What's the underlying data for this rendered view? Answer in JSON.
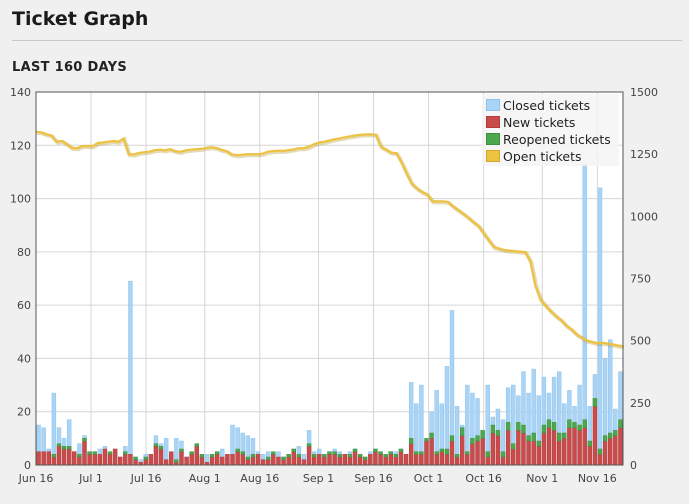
{
  "page": {
    "title": "Ticket Graph",
    "section": "LAST 160 DAYS"
  },
  "legend": [
    {
      "label": "Closed tickets",
      "color": "#a9d4f5",
      "border": "#8fc2ea"
    },
    {
      "label": "New tickets",
      "color": "#cb4b4b",
      "border": "#b13b3b"
    },
    {
      "label": "Reopened tickets",
      "color": "#4da74d",
      "border": "#3d8f3d"
    },
    {
      "label": "Open tickets",
      "color": "#edc240",
      "border": "#d4a82a"
    }
  ],
  "chart_data": {
    "type": "bar",
    "title": "",
    "grid": true,
    "legend_position": "top-right",
    "x_tick_labels": [
      "Jun 16",
      "Jul 1",
      "Jul 16",
      "Aug 1",
      "Aug 16",
      "Sep 1",
      "Sep 16",
      "Oct 1",
      "Oct 16",
      "Nov 1",
      "Nov 16"
    ],
    "y_left": {
      "ylim": [
        0,
        140
      ],
      "ticks": [
        "0",
        "20",
        "40",
        "60",
        "80",
        "100",
        "120",
        "140"
      ]
    },
    "y_right": {
      "ylim": [
        0,
        1500
      ],
      "ticks": [
        "0",
        "250",
        "500",
        "750",
        "1000",
        "1250",
        "1500"
      ]
    },
    "series": [
      {
        "name": "Closed tickets",
        "axis": "left",
        "values": [
          15,
          14,
          6,
          27,
          14,
          10,
          17,
          5,
          8,
          11,
          5,
          4,
          6,
          7,
          4,
          6,
          3,
          7,
          69,
          3,
          2,
          4,
          3,
          11,
          8,
          10,
          4,
          10,
          9,
          3,
          4,
          8,
          3,
          4,
          3,
          5,
          6,
          4,
          15,
          14,
          12,
          11,
          10,
          5,
          4,
          5,
          4,
          5,
          3,
          4,
          6,
          7,
          4,
          13,
          5,
          6,
          4,
          5,
          6,
          5,
          4,
          5,
          6,
          4,
          3,
          5,
          6,
          5,
          4,
          5,
          5,
          6,
          4,
          31,
          23,
          30,
          8,
          20,
          28,
          23,
          37,
          58,
          22,
          15,
          30,
          27,
          25,
          12,
          30,
          18,
          21,
          17,
          29,
          30,
          26,
          35,
          27,
          36,
          26,
          33,
          27,
          33,
          35,
          23,
          28,
          22,
          30,
          113,
          22,
          34,
          104,
          40,
          47,
          21,
          35
        ]
      },
      {
        "name": "New tickets",
        "axis": "left",
        "values": [
          5,
          5,
          5,
          3,
          7,
          6,
          6,
          5,
          3,
          9,
          4,
          4,
          4,
          6,
          4,
          6,
          3,
          4,
          4,
          2,
          1,
          2,
          4,
          7,
          6,
          2,
          5,
          1,
          5,
          3,
          4,
          7,
          3,
          1,
          3,
          4,
          3,
          4,
          4,
          5,
          4,
          2,
          3,
          4,
          2,
          2,
          4,
          3,
          2,
          3,
          5,
          3,
          2,
          7,
          3,
          4,
          3,
          4,
          4,
          3,
          4,
          3,
          5,
          3,
          2,
          4,
          5,
          4,
          3,
          4,
          3,
          5,
          4,
          8,
          4,
          4,
          9,
          10,
          4,
          5,
          4,
          9,
          3,
          11,
          4,
          8,
          9,
          10,
          3,
          12,
          11,
          3,
          13,
          6,
          13,
          12,
          9,
          9,
          7,
          12,
          14,
          13,
          9,
          10,
          14,
          14,
          13,
          14,
          7,
          22,
          4,
          9,
          10,
          11,
          14
        ]
      },
      {
        "name": "Reopened tickets",
        "axis": "left",
        "values": [
          0,
          0,
          0,
          1,
          1,
          1,
          1,
          0,
          1,
          1,
          1,
          1,
          0,
          0,
          1,
          0,
          0,
          1,
          0,
          1,
          0,
          1,
          0,
          1,
          1,
          0,
          0,
          1,
          1,
          0,
          1,
          1,
          1,
          0,
          1,
          1,
          0,
          0,
          0,
          1,
          1,
          1,
          1,
          0,
          0,
          1,
          1,
          0,
          1,
          1,
          1,
          1,
          0,
          1,
          1,
          0,
          1,
          1,
          1,
          1,
          0,
          1,
          1,
          1,
          1,
          0,
          1,
          1,
          1,
          1,
          1,
          1,
          0,
          2,
          1,
          1,
          1,
          2,
          1,
          1,
          2,
          2,
          1,
          3,
          1,
          2,
          2,
          3,
          2,
          3,
          2,
          2,
          3,
          2,
          3,
          3,
          2,
          3,
          2,
          3,
          3,
          3,
          3,
          2,
          3,
          2,
          2,
          3,
          2,
          3,
          2,
          2,
          2,
          2,
          3
        ]
      },
      {
        "name": "Open tickets",
        "axis": "right",
        "type": "line",
        "values": [
          1340,
          1338,
          1330,
          1325,
          1300,
          1303,
          1290,
          1275,
          1274,
          1283,
          1283,
          1282,
          1295,
          1297,
          1300,
          1303,
          1300,
          1313,
          1250,
          1249,
          1255,
          1258,
          1260,
          1266,
          1268,
          1265,
          1270,
          1262,
          1259,
          1265,
          1268,
          1270,
          1271,
          1275,
          1278,
          1275,
          1267,
          1262,
          1249,
          1246,
          1248,
          1250,
          1250,
          1250,
          1252,
          1260,
          1262,
          1264,
          1263,
          1266,
          1269,
          1274,
          1274,
          1280,
          1290,
          1297,
          1300,
          1305,
          1310,
          1314,
          1318,
          1322,
          1325,
          1328,
          1329,
          1330,
          1328,
          1280,
          1268,
          1256,
          1254,
          1216,
          1172,
          1130,
          1112,
          1098,
          1088,
          1060,
          1060,
          1060,
          1058,
          1040,
          1025,
          1010,
          994,
          976,
          960,
          930,
          902,
          876,
          870,
          864,
          862,
          860,
          858,
          856,
          820,
          720,
          665,
          640,
          618,
          598,
          582,
          560,
          545,
          525,
          512,
          500,
          495,
          490,
          492,
          488,
          485,
          480,
          478
        ],
        "days": 160
      }
    ]
  }
}
